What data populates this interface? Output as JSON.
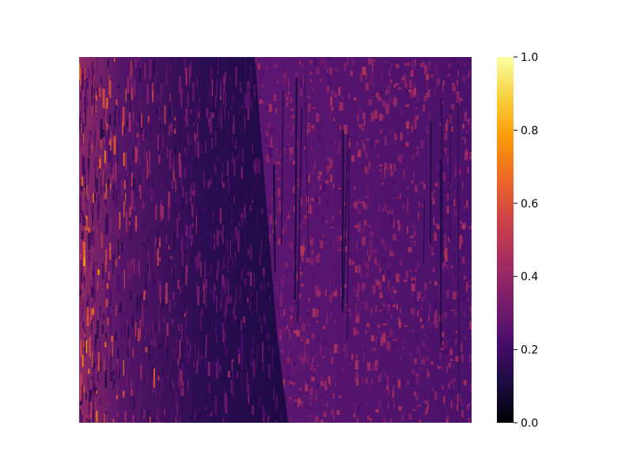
{
  "chart_data": {
    "type": "heatmap",
    "title": "",
    "xlabel": "",
    "ylabel": "",
    "axes_visible": false,
    "grid": false,
    "colormap": "inferno",
    "colormap_stops": [
      "#000004",
      "#1b0c41",
      "#4a0c6b",
      "#781c6d",
      "#a52c60",
      "#cf4446",
      "#ed6925",
      "#fb9b06",
      "#f7d13d",
      "#fcffa4"
    ],
    "colorbar": {
      "placement": "right",
      "range": [
        0.0,
        1.0
      ],
      "ticks": [
        0.0,
        0.2,
        0.4,
        0.6,
        0.8,
        1.0
      ],
      "tick_labels": [
        "0.0",
        "0.2",
        "0.4",
        "0.6",
        "0.8",
        "1.0"
      ]
    },
    "image_description_regions": {
      "left_region_mean": 0.25,
      "left_region_streaks_max": 0.8,
      "right_region_mean": 0.35
    }
  }
}
